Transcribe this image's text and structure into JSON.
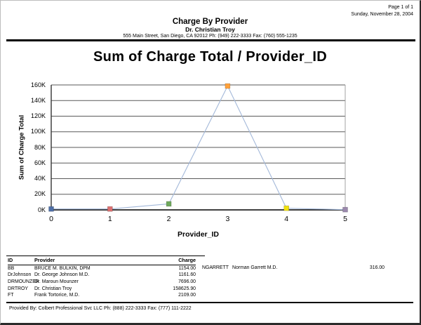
{
  "page": {
    "page_number": "Page 1 of 1",
    "date": "Sunday, November 28, 2004"
  },
  "header": {
    "title": "Charge By Provider",
    "provider_name": "Dr. Christian Troy",
    "address": "555 Main Street, San Diego, CA 92012 Ph: (949) 222-3333 Fax: (760) 555-1235"
  },
  "chart_data": {
    "type": "line",
    "title": "Sum of Charge Total / Provider_ID",
    "xlabel": "Provider_ID",
    "ylabel": "Sum of Charge Total",
    "x": [
      0,
      1,
      2,
      3,
      4,
      5
    ],
    "values": [
      1154.0,
      1161.6,
      7696.0,
      158625.9,
      2109.0,
      316.0
    ],
    "ylim": [
      0,
      160000
    ],
    "ytick_step": 20000,
    "ytick_labels": [
      "0K",
      "20K",
      "40K",
      "60K",
      "80K",
      "100K",
      "120K",
      "140K",
      "160K"
    ],
    "xtick_labels": [
      "0",
      "1",
      "2",
      "3",
      "4",
      "5"
    ],
    "grid": "horizontal-only",
    "legend": "none",
    "line_color": "#a3b8d9",
    "marker_colors": [
      "#4e6fa7",
      "#dc7070",
      "#6fa95c",
      "#ffa13b",
      "#f2e20c",
      "#9b89ad"
    ],
    "grid_color": "#5a5a5a",
    "bottom_axis_color": "#000000",
    "left_axis_color": "#333333",
    "right_frame_color": "#999999"
  },
  "table": {
    "columns": [
      "ID",
      "Provider",
      "Charge"
    ],
    "rows": [
      [
        "BB",
        "BRUCE M. BULKIN, DPM",
        "1154.00"
      ],
      [
        "DrJohnson",
        "Dr. George Johnson M.D.",
        "1161.60"
      ],
      [
        "DRMOUNZER",
        "Dr. Maroun Mounzer",
        "7696.00"
      ],
      [
        "DRTROY",
        "Dr. Christian Troy",
        "158625.90"
      ],
      [
        "FT",
        "Frank Tortorice, M.D.",
        "2109.00"
      ]
    ],
    "rows_right": [
      [
        "NGARRETT",
        "Norman Garrett M.D.",
        "316.00"
      ]
    ]
  },
  "footer": {
    "text": "Provided By: Colbert Professional Svc LLC Ph: (888) 222-3333 Fax: (777) 111-2222"
  }
}
